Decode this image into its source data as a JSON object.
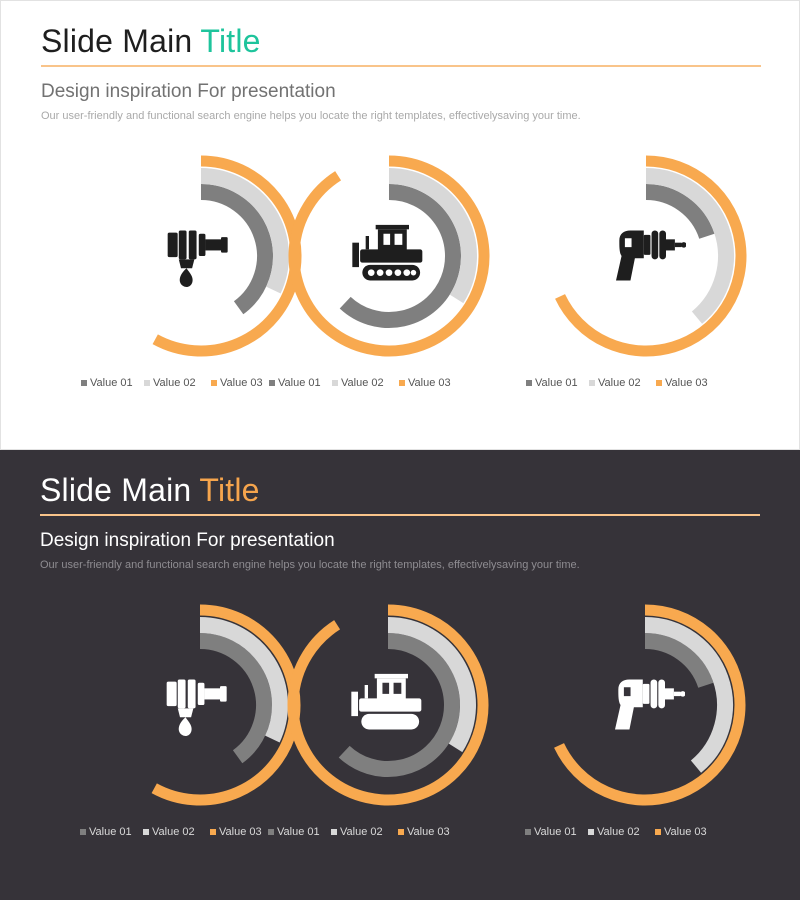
{
  "slides": [
    {
      "theme": "light",
      "title_main": "Slide Main",
      "title_accent": "Title",
      "subtitle": "Design inspiration For presentation",
      "description": "Our user-friendly and functional search engine helps you locate the right templates, effectivelysaving your time."
    },
    {
      "theme": "dark",
      "title_main": "Slide Main",
      "title_accent": "Title",
      "subtitle": "Design inspiration For presentation",
      "description": "Our user-friendly and functional search engine helps you locate the right templates, effectivelysaving your time."
    }
  ],
  "colors": {
    "light_title_accent": "#1ec49c",
    "dark_title_accent": "#f6a54d",
    "value_01": "#7f7f7f",
    "value_02": "#d8d8d8",
    "value_03": "#f8a94f",
    "light_icon": "#1e1e1e",
    "dark_icon": "#ffffff"
  },
  "legend_labels": [
    "Value 01",
    "Value 02",
    "Value 03"
  ],
  "icons": [
    "hand-drill-icon",
    "bulldozer-icon",
    "ray-gun-icon"
  ],
  "chart_data": [
    {
      "type": "radial-bar",
      "series": [
        {
          "name": "Value 01",
          "value": 0.4
        },
        {
          "name": "Value 02",
          "value": 0.32
        },
        {
          "name": "Value 03",
          "value": 0.58
        }
      ]
    },
    {
      "type": "radial-bar",
      "series": [
        {
          "name": "Value 01",
          "value": 0.62
        },
        {
          "name": "Value 02",
          "value": 0.34
        },
        {
          "name": "Value 03",
          "value": 0.91
        }
      ]
    },
    {
      "type": "radial-bar",
      "series": [
        {
          "name": "Value 01",
          "value": 0.2
        },
        {
          "name": "Value 02",
          "value": 0.39
        },
        {
          "name": "Value 03",
          "value": 0.68
        }
      ]
    }
  ]
}
